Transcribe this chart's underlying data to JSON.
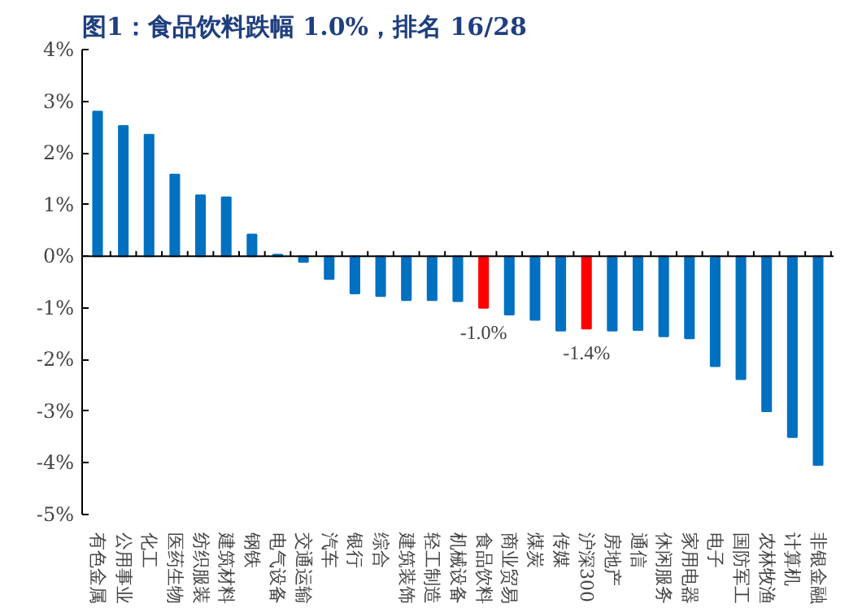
{
  "chart_data": {
    "type": "bar",
    "title": "图1：食品饮料跌幅 1.0%，排名 16/28",
    "categories": [
      "有色金属",
      "公用事业",
      "化工",
      "医药生物",
      "纺织服装",
      "建筑材料",
      "钢铁",
      "电气设备",
      "交通运输",
      "汽车",
      "银行",
      "综合",
      "建筑装饰",
      "轻工制造",
      "机械设备",
      "食品饮料",
      "商业贸易",
      "煤炭",
      "传媒",
      "沪深300",
      "房地产",
      "通信",
      "休闲服务",
      "家用电器",
      "电子",
      "国防军工",
      "农林牧渔",
      "计算机",
      "非银金融"
    ],
    "values": [
      2.8,
      2.52,
      2.35,
      1.58,
      1.18,
      1.14,
      0.42,
      0.03,
      -0.11,
      -0.44,
      -0.72,
      -0.77,
      -0.85,
      -0.85,
      -0.87,
      -1.0,
      -1.13,
      -1.23,
      -1.44,
      -1.4,
      -1.44,
      -1.43,
      -1.55,
      -1.59,
      -2.13,
      -2.38,
      -3.0,
      -3.5,
      -4.04
    ],
    "colors": [
      "#0070c0",
      "#0070c0",
      "#0070c0",
      "#0070c0",
      "#0070c0",
      "#0070c0",
      "#0070c0",
      "#0070c0",
      "#0070c0",
      "#0070c0",
      "#0070c0",
      "#0070c0",
      "#0070c0",
      "#0070c0",
      "#0070c0",
      "#ff0000",
      "#0070c0",
      "#0070c0",
      "#0070c0",
      "#ff0000",
      "#0070c0",
      "#0070c0",
      "#0070c0",
      "#0070c0",
      "#0070c0",
      "#0070c0",
      "#0070c0",
      "#0070c0",
      "#0070c0"
    ],
    "value_labels": [
      null,
      null,
      null,
      null,
      null,
      null,
      null,
      null,
      null,
      null,
      null,
      null,
      null,
      null,
      null,
      "-1.0%",
      null,
      null,
      null,
      "-1.4%",
      null,
      null,
      null,
      null,
      null,
      null,
      null,
      null,
      null
    ],
    "ylim": [
      -5,
      4
    ],
    "yticks": [
      {
        "value": -5,
        "label": "-5%"
      },
      {
        "value": -4,
        "label": "-4%"
      },
      {
        "value": -3,
        "label": "-3%"
      },
      {
        "value": -2,
        "label": "-2%"
      },
      {
        "value": -1,
        "label": "-1%"
      },
      {
        "value": 0,
        "label": "0%"
      },
      {
        "value": 1,
        "label": "1%"
      },
      {
        "value": 2,
        "label": "2%"
      },
      {
        "value": 3,
        "label": "3%"
      },
      {
        "value": 4,
        "label": "4%"
      }
    ]
  }
}
